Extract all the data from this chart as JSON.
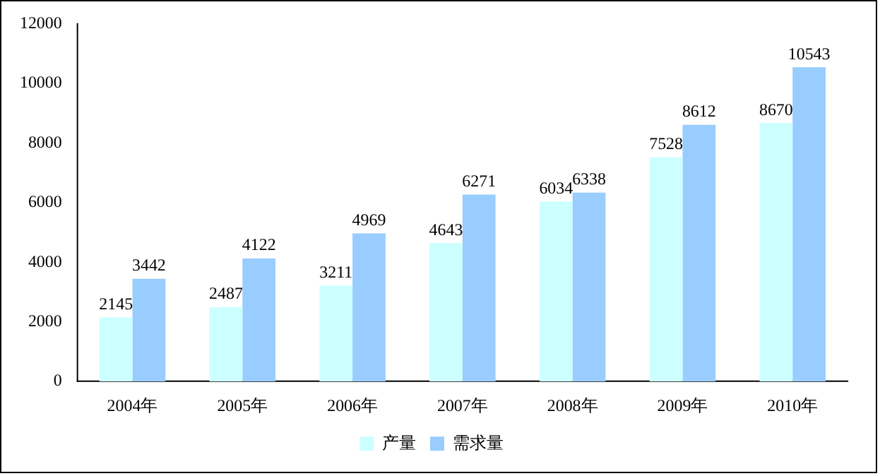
{
  "chart_data": {
    "type": "bar",
    "categories": [
      "2004年",
      "2005年",
      "2006年",
      "2007年",
      "2008年",
      "2009年",
      "2010年"
    ],
    "series": [
      {
        "name": "产量",
        "color": "#ccffff",
        "values": [
          2145,
          2487,
          3211,
          4643,
          6034,
          7528,
          8670
        ]
      },
      {
        "name": "需求量",
        "color": "#99ccff",
        "values": [
          3442,
          4122,
          4969,
          6271,
          6338,
          8612,
          10543
        ]
      }
    ],
    "ylim": [
      0,
      12000
    ],
    "yticks": [
      0,
      2000,
      4000,
      6000,
      8000,
      10000,
      12000
    ],
    "grid": false,
    "legend": "bottom",
    "data_labels": true
  }
}
